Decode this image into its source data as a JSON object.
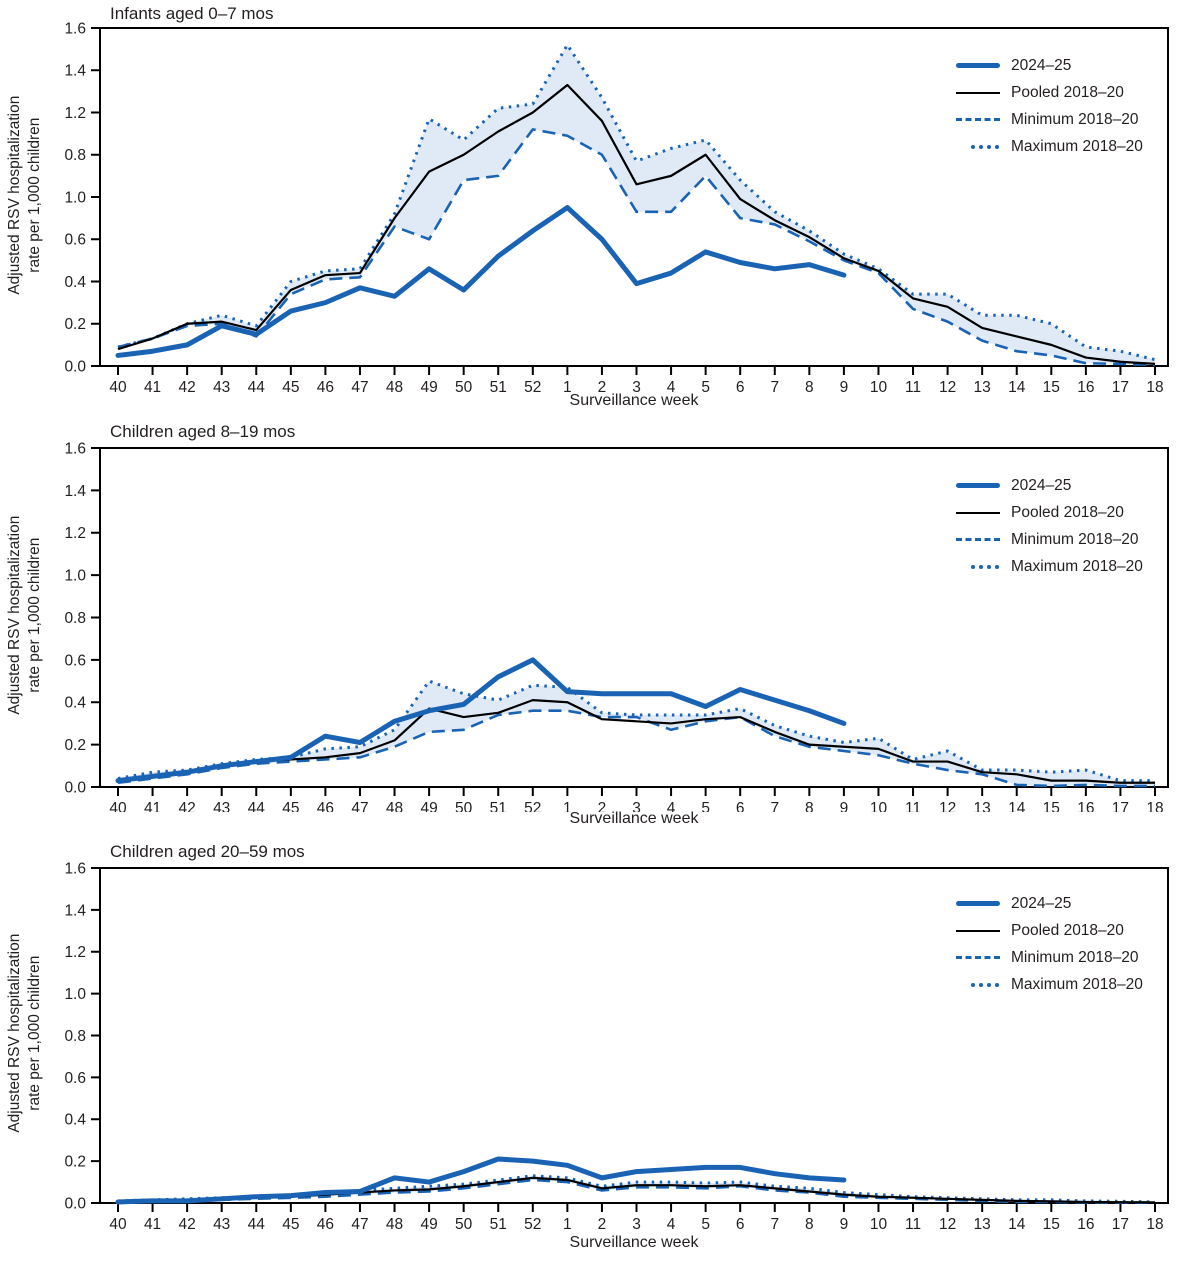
{
  "figure": {
    "xlabel": "Surveillance week",
    "ylabel_line1": "Adjusted RSV hospitalization",
    "ylabel_line2": "rate per 1,000 children",
    "weeks": [
      "40",
      "41",
      "42",
      "43",
      "44",
      "45",
      "46",
      "47",
      "48",
      "49",
      "50",
      "51",
      "52",
      "1",
      "2",
      "3",
      "4",
      "5",
      "6",
      "7",
      "8",
      "9",
      "10",
      "11",
      "12",
      "13",
      "14",
      "15",
      "16",
      "17",
      "18"
    ],
    "legend": [
      {
        "label": "2024–25",
        "swatch": "thick-blue-solid-line"
      },
      {
        "label": "Pooled 2018–20",
        "swatch": "thin-black-solid-line"
      },
      {
        "label": "Minimum 2018–20",
        "swatch": "blue-dashed-line"
      },
      {
        "label": "Maximum 2018–20",
        "swatch": "blue-dotted-line"
      }
    ],
    "colors": {
      "blue": "#1A63B4",
      "black": "#000000",
      "band": "#C7D8EE",
      "text": "#231F20"
    }
  },
  "chart_data": [
    {
      "type": "line",
      "title": "Infants aged 0–7 mos",
      "xlabel": "Surveillance week",
      "ylabel": "Adjusted RSV hospitalization rate per 1,000 children",
      "ylim": [
        0,
        1.6
      ],
      "grid": false,
      "legend_position": "top-right",
      "y_tick_labels_top_to_bottom": [
        "1.6",
        "1.4",
        "1.2",
        "0.8",
        "1.0",
        "0.6",
        "0.4",
        "0.2",
        "0.0"
      ],
      "y_axis_label_note": "0.8 and 1.0 tick labels appear swapped in the source figure",
      "series": [
        {
          "name": "2024–25",
          "values": [
            0.05,
            0.07,
            0.1,
            0.19,
            0.15,
            0.26,
            0.3,
            0.37,
            0.33,
            0.46,
            0.36,
            0.52,
            0.64,
            0.75,
            0.6,
            0.39,
            0.44,
            0.54,
            0.49,
            0.46,
            0.48,
            0.43
          ]
        },
        {
          "name": "Pooled 2018–20",
          "values": [
            0.08,
            0.13,
            0.2,
            0.21,
            0.17,
            0.36,
            0.43,
            0.44,
            0.7,
            0.92,
            1.0,
            1.11,
            1.2,
            1.33,
            1.16,
            0.86,
            0.9,
            1.0,
            0.79,
            0.69,
            0.61,
            0.51,
            0.45,
            0.32,
            0.28,
            0.18,
            0.14,
            0.1,
            0.04,
            0.02,
            0.01
          ]
        },
        {
          "name": "Minimum 2018–20",
          "values": [
            0.09,
            0.13,
            0.19,
            0.2,
            0.14,
            0.34,
            0.41,
            0.42,
            0.66,
            0.6,
            0.88,
            0.9,
            1.12,
            1.09,
            1.0,
            0.73,
            0.73,
            0.9,
            0.7,
            0.67,
            0.59,
            0.5,
            0.44,
            0.27,
            0.21,
            0.12,
            0.07,
            0.05,
            0.013,
            0.01,
            0.005
          ]
        },
        {
          "name": "Maximum 2018–20",
          "values": [
            0.09,
            0.13,
            0.2,
            0.24,
            0.19,
            0.4,
            0.45,
            0.46,
            0.72,
            1.17,
            1.07,
            1.22,
            1.24,
            1.52,
            1.27,
            0.97,
            1.03,
            1.07,
            0.88,
            0.73,
            0.64,
            0.53,
            0.46,
            0.34,
            0.34,
            0.24,
            0.24,
            0.2,
            0.09,
            0.07,
            0.03
          ]
        }
      ]
    },
    {
      "type": "line",
      "title": "Children aged 8–19 mos",
      "xlabel": "Surveillance week",
      "ylabel": "Adjusted RSV hospitalization rate per 1,000 children",
      "ylim": [
        0,
        1.6
      ],
      "grid": false,
      "legend_position": "top-right",
      "y_tick_labels_top_to_bottom": [
        "1.6",
        "1.4",
        "1.2",
        "1.0",
        "0.8",
        "0.6",
        "0.4",
        "0.2",
        "0.0"
      ],
      "series": [
        {
          "name": "2024–25",
          "values": [
            0.03,
            0.05,
            0.07,
            0.1,
            0.12,
            0.14,
            0.24,
            0.21,
            0.31,
            0.36,
            0.39,
            0.52,
            0.6,
            0.45,
            0.44,
            0.44,
            0.44,
            0.38,
            0.46,
            0.41,
            0.36,
            0.3
          ]
        },
        {
          "name": "Pooled 2018–20",
          "values": [
            0.03,
            0.05,
            0.07,
            0.1,
            0.12,
            0.13,
            0.14,
            0.16,
            0.22,
            0.37,
            0.33,
            0.35,
            0.41,
            0.4,
            0.32,
            0.31,
            0.3,
            0.32,
            0.33,
            0.26,
            0.2,
            0.19,
            0.18,
            0.12,
            0.12,
            0.07,
            0.06,
            0.03,
            0.03,
            0.02,
            0.02
          ]
        },
        {
          "name": "Minimum 2018–20",
          "values": [
            0.02,
            0.04,
            0.06,
            0.09,
            0.11,
            0.12,
            0.13,
            0.14,
            0.19,
            0.26,
            0.27,
            0.34,
            0.36,
            0.36,
            0.33,
            0.33,
            0.27,
            0.31,
            0.33,
            0.24,
            0.19,
            0.17,
            0.15,
            0.11,
            0.08,
            0.06,
            0.01,
            0.005,
            0.01,
            0.005,
            0.005
          ]
        },
        {
          "name": "Maximum 2018–20",
          "values": [
            0.04,
            0.07,
            0.08,
            0.11,
            0.13,
            0.14,
            0.18,
            0.19,
            0.27,
            0.5,
            0.44,
            0.41,
            0.48,
            0.47,
            0.35,
            0.34,
            0.34,
            0.34,
            0.37,
            0.29,
            0.24,
            0.21,
            0.23,
            0.13,
            0.17,
            0.08,
            0.08,
            0.07,
            0.08,
            0.03,
            0.03
          ]
        }
      ]
    },
    {
      "type": "line",
      "title": "Children aged 20–59 mos",
      "xlabel": "Surveillance week",
      "ylabel": "Adjusted RSV hospitalization rate per 1,000 children",
      "ylim": [
        0,
        1.6
      ],
      "grid": false,
      "legend_position": "top-right",
      "y_tick_labels_top_to_bottom": [
        "1.6",
        "1.4",
        "1.2",
        "1.0",
        "0.8",
        "0.6",
        "0.4",
        "0.2",
        "0.0"
      ],
      "series": [
        {
          "name": "2024–25",
          "values": [
            0.005,
            0.01,
            0.01,
            0.02,
            0.03,
            0.035,
            0.05,
            0.055,
            0.12,
            0.1,
            0.15,
            0.21,
            0.2,
            0.18,
            0.12,
            0.15,
            0.16,
            0.17,
            0.17,
            0.14,
            0.12,
            0.11
          ]
        },
        {
          "name": "Pooled 2018–20",
          "values": [
            0.005,
            0.01,
            0.015,
            0.02,
            0.025,
            0.03,
            0.04,
            0.05,
            0.06,
            0.065,
            0.08,
            0.1,
            0.12,
            0.11,
            0.07,
            0.085,
            0.085,
            0.08,
            0.085,
            0.07,
            0.055,
            0.04,
            0.03,
            0.025,
            0.02,
            0.015,
            0.01,
            0.008,
            0.005,
            0.004,
            0.003
          ]
        },
        {
          "name": "Minimum 2018–20",
          "values": [
            0.003,
            0.005,
            0.01,
            0.015,
            0.02,
            0.025,
            0.03,
            0.04,
            0.05,
            0.055,
            0.07,
            0.09,
            0.11,
            0.1,
            0.06,
            0.075,
            0.075,
            0.07,
            0.08,
            0.06,
            0.05,
            0.03,
            0.025,
            0.02,
            0.015,
            0.01,
            0.005,
            0.005,
            0.003,
            0.002,
            0.002
          ]
        },
        {
          "name": "Maximum 2018–20",
          "values": [
            0.01,
            0.015,
            0.02,
            0.025,
            0.03,
            0.035,
            0.05,
            0.06,
            0.07,
            0.08,
            0.09,
            0.11,
            0.13,
            0.12,
            0.08,
            0.1,
            0.1,
            0.095,
            0.1,
            0.08,
            0.07,
            0.05,
            0.04,
            0.03,
            0.025,
            0.02,
            0.015,
            0.015,
            0.01,
            0.008,
            0.005
          ]
        }
      ]
    }
  ]
}
